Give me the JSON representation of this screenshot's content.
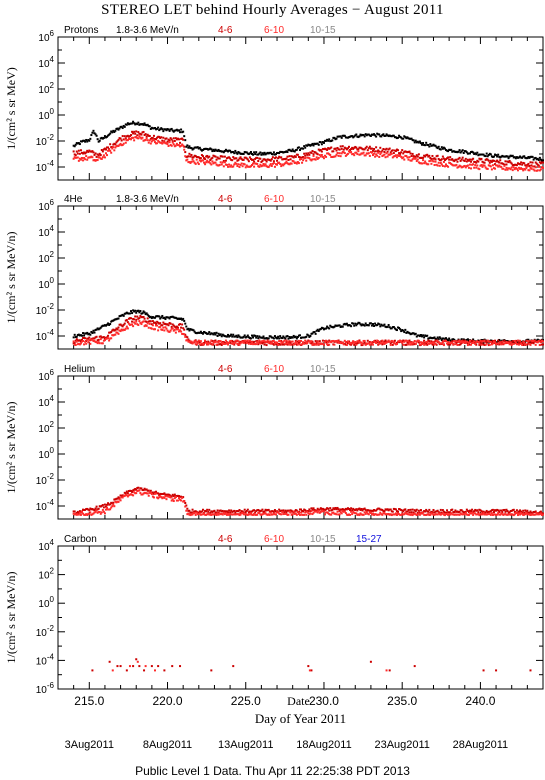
{
  "title": "STEREO LET behind Hourly Averages − August 2011",
  "footer": "Public Level 1 Data. Thu Apr 11 22:25:38 PDT 2013",
  "colors": {
    "series_1": "#000000",
    "series_2": "#cc0000",
    "series_3": "#ff2a2a",
    "series_4": "#888888",
    "series_5": "#1010dd"
  },
  "chart_data": [
    {
      "type": "scatter",
      "panel_label": "Protons",
      "ylabel": "1/(cm² s sr MeV)",
      "yscale": "log",
      "ylim_exp": [
        -5,
        6
      ],
      "ytick_exps": [
        -4,
        -2,
        0,
        2,
        4,
        6
      ],
      "xlim": [
        213.0,
        244.0
      ],
      "channel_labels": [
        "1.8-3.6 MeV/n",
        "4-6",
        "6-10",
        "10-15"
      ],
      "channel_colors": [
        "#000000",
        "#cc0000",
        "#ff2a2a",
        "#888888"
      ],
      "series": [
        {
          "name": "1.8-3.6 MeV/n",
          "color": "#000000",
          "x": [
            214.0,
            214.5,
            215.0,
            215.3,
            215.6,
            216.0,
            216.5,
            217.0,
            217.5,
            218.0,
            218.5,
            219.0,
            219.5,
            220.0,
            220.5,
            221.0,
            221.2,
            221.5,
            222.0,
            223.0,
            224.0,
            225.0,
            226.0,
            227.0,
            228.0,
            229.0,
            230.0,
            231.0,
            232.0,
            233.0,
            234.0,
            235.0,
            236.0,
            237.0,
            238.0,
            239.0,
            240.0,
            241.0,
            242.0,
            243.0,
            244.0
          ],
          "y": [
            0.004,
            0.008,
            0.012,
            0.06,
            0.01,
            0.02,
            0.05,
            0.1,
            0.22,
            0.25,
            0.2,
            0.1,
            0.08,
            0.07,
            0.06,
            0.06,
            0.004,
            0.003,
            0.0025,
            0.002,
            0.0015,
            0.0012,
            0.001,
            0.0012,
            0.0018,
            0.004,
            0.008,
            0.02,
            0.025,
            0.03,
            0.025,
            0.02,
            0.008,
            0.004,
            0.002,
            0.0015,
            0.001,
            0.0007,
            0.0006,
            0.0005,
            0.0004
          ]
        },
        {
          "name": "4-6",
          "color": "#cc0000",
          "x": [
            214.0,
            215.0,
            215.5,
            216.0,
            217.0,
            217.5,
            218.0,
            218.5,
            219.0,
            220.0,
            220.5,
            221.0,
            221.2,
            222.0,
            224.0,
            226.0,
            228.0,
            229.0,
            230.0,
            231.0,
            232.0,
            233.0,
            234.0,
            235.0,
            236.0,
            238.0,
            240.0,
            242.0,
            244.0
          ],
          "y": [
            0.0012,
            0.0015,
            0.0008,
            0.002,
            0.015,
            0.03,
            0.04,
            0.035,
            0.02,
            0.012,
            0.012,
            0.01,
            0.0008,
            0.0006,
            0.0004,
            0.00035,
            0.0005,
            0.001,
            0.0018,
            0.003,
            0.003,
            0.0025,
            0.002,
            0.0015,
            0.0008,
            0.0004,
            0.0003,
            0.0002,
            0.00015
          ]
        },
        {
          "name": "6-10",
          "color": "#ff2a2a",
          "x": [
            214.0,
            215.0,
            215.5,
            216.0,
            217.0,
            217.5,
            218.0,
            218.5,
            219.0,
            220.0,
            220.5,
            221.0,
            221.2,
            222.0,
            224.0,
            226.0,
            228.0,
            229.0,
            230.0,
            231.0,
            232.0,
            233.0,
            234.0,
            235.0,
            236.0,
            238.0,
            240.0,
            242.0,
            244.0
          ],
          "y": [
            0.0004,
            0.0005,
            0.0003,
            0.0008,
            0.006,
            0.012,
            0.018,
            0.015,
            0.009,
            0.006,
            0.005,
            0.004,
            0.0003,
            0.00025,
            0.00015,
            0.00012,
            0.0002,
            0.0004,
            0.0007,
            0.001,
            0.0012,
            0.001,
            0.0008,
            0.0006,
            0.0003,
            0.00015,
            0.0001,
            8e-05,
            7e-05
          ]
        }
      ]
    },
    {
      "type": "scatter",
      "panel_label": "4He",
      "ylabel": "1/(cm² s sr MeV/n)",
      "yscale": "log",
      "ylim_exp": [
        -5,
        6
      ],
      "ytick_exps": [
        -4,
        -2,
        0,
        2,
        4,
        6
      ],
      "xlim": [
        213.0,
        244.0
      ],
      "channel_labels": [
        "1.8-3.6 MeV/n",
        "4-6",
        "6-10",
        "10-15"
      ],
      "channel_colors": [
        "#000000",
        "#cc0000",
        "#ff2a2a",
        "#888888"
      ],
      "series": [
        {
          "name": "1.8-3.6 MeV/n",
          "color": "#000000",
          "x": [
            214.0,
            215.0,
            216.0,
            217.0,
            217.5,
            218.0,
            218.5,
            219.0,
            220.0,
            221.0,
            221.3,
            222.0,
            224.0,
            226.0,
            228.0,
            229.0,
            230.0,
            231.0,
            232.0,
            233.0,
            234.0,
            235.0,
            236.0,
            238.0,
            240.0,
            242.0,
            244.0
          ],
          "y": [
            0.0001,
            0.00015,
            0.0006,
            0.003,
            0.006,
            0.008,
            0.006,
            0.003,
            0.0025,
            0.002,
            0.0003,
            0.0002,
            0.0001,
            8e-05,
            8e-05,
            0.0001,
            0.0004,
            0.0006,
            0.0008,
            0.0008,
            0.0006,
            0.0003,
            0.0001,
            5e-05,
            4e-05,
            4e-05,
            4e-05
          ]
        },
        {
          "name": "4-6",
          "color": "#cc0000",
          "x": [
            214.0,
            216.0,
            217.0,
            217.5,
            218.0,
            218.5,
            219.0,
            220.0,
            221.0,
            221.3,
            222.0,
            226.0,
            230.0,
            234.0,
            238.0,
            244.0
          ],
          "y": [
            4e-05,
            8e-05,
            0.0006,
            0.0015,
            0.0025,
            0.0022,
            0.0012,
            0.0008,
            0.0005,
            4e-05,
            3e-05,
            3e-05,
            3e-05,
            3e-05,
            3e-05,
            3e-05
          ]
        },
        {
          "name": "6-10",
          "color": "#ff2a2a",
          "x": [
            214.0,
            216.0,
            217.0,
            217.5,
            218.0,
            218.5,
            219.0,
            220.0,
            221.0,
            221.3,
            222.0,
            226.0,
            230.0,
            234.0,
            238.0,
            244.0
          ],
          "y": [
            3e-05,
            4e-05,
            0.0002,
            0.0006,
            0.001,
            0.0009,
            0.0005,
            0.0003,
            0.0002,
            3e-05,
            3e-05,
            3e-05,
            3e-05,
            3e-05,
            3e-05,
            3e-05
          ]
        }
      ]
    },
    {
      "type": "scatter",
      "panel_label": "Helium",
      "ylabel": "1/(cm² s sr MeV/n)",
      "yscale": "log",
      "ylim_exp": [
        -5,
        6
      ],
      "ytick_exps": [
        -4,
        -2,
        0,
        2,
        4,
        6
      ],
      "xlim": [
        213.0,
        244.0
      ],
      "channel_labels": [
        "4-6",
        "6-10",
        "10-15"
      ],
      "channel_colors": [
        "#cc0000",
        "#ff2a2a",
        "#888888"
      ],
      "series": [
        {
          "name": "4-6",
          "color": "#cc0000",
          "x": [
            214.0,
            215.0,
            216.0,
            216.5,
            217.0,
            217.5,
            218.0,
            218.5,
            219.0,
            219.5,
            220.0,
            220.5,
            221.0,
            221.3,
            222.0,
            225.0,
            228.0,
            230.0,
            232.0,
            234.0,
            236.0,
            238.0,
            240.0,
            242.0,
            244.0
          ],
          "y": [
            3e-05,
            5e-05,
            0.0001,
            0.0002,
            0.0005,
            0.0012,
            0.002,
            0.0018,
            0.0012,
            0.0008,
            0.0007,
            0.0006,
            0.0005,
            4e-05,
            4e-05,
            4e-05,
            4e-05,
            6e-05,
            5e-05,
            5e-05,
            4e-05,
            4e-05,
            4e-05,
            4e-05,
            3e-05
          ]
        },
        {
          "name": "6-10",
          "color": "#ff2a2a",
          "x": [
            214.0,
            216.0,
            216.5,
            217.0,
            217.5,
            218.0,
            218.5,
            219.0,
            220.0,
            221.0,
            221.3,
            222.0,
            226.0,
            230.0,
            234.0,
            238.0,
            242.0,
            244.0
          ],
          "y": [
            2e-05,
            4e-05,
            0.0001,
            0.0003,
            0.0007,
            0.0012,
            0.001,
            0.0007,
            0.0004,
            0.0003,
            2e-05,
            2e-05,
            2e-05,
            3e-05,
            2e-05,
            2e-05,
            2e-05,
            2e-05
          ]
        }
      ]
    },
    {
      "type": "scatter",
      "panel_label": "Carbon",
      "ylabel": "1/(cm² s sr MeV/n)",
      "yscale": "log",
      "ylim_exp": [
        -6,
        4
      ],
      "ytick_exps": [
        -6,
        -4,
        -2,
        0,
        2,
        4
      ],
      "xlim": [
        213.0,
        244.0
      ],
      "xticks": [
        215.0,
        220.0,
        225.0,
        230.0,
        235.0,
        240.0
      ],
      "xlabel": "Day of Year 2011",
      "channel_labels": [
        "4-6",
        "6-10",
        "10-15",
        "15-27"
      ],
      "channel_colors": [
        "#cc0000",
        "#ff2a2a",
        "#888888",
        "#1010dd"
      ],
      "series": [
        {
          "name": "4-6",
          "color": "#cc0000",
          "x": [
            215.2,
            216.3,
            216.8,
            217.0,
            217.4,
            217.8,
            218.0,
            218.2,
            218.5,
            219.0,
            219.4,
            219.8,
            220.3,
            220.8,
            222.8,
            224.2,
            229.0,
            229.2,
            233.0,
            234.2,
            235.8,
            240.2,
            241.0,
            243.2
          ],
          "y": [
            2e-05,
            8e-05,
            4e-05,
            4e-05,
            2e-05,
            4e-05,
            0.00012,
            4e-05,
            2e-05,
            4e-05,
            4e-05,
            2e-05,
            4e-05,
            4e-05,
            2e-05,
            4e-05,
            4e-05,
            2e-05,
            8e-05,
            2e-05,
            4e-05,
            2e-05,
            2e-05,
            2e-05
          ]
        },
        {
          "name": "6-10",
          "color": "#ff2a2a",
          "x": [
            216.5,
            217.6,
            218.1,
            218.6,
            219.2,
            229.1,
            234.0
          ],
          "y": [
            2e-05,
            4e-05,
            8e-05,
            4e-05,
            2e-05,
            2e-05,
            2e-05
          ]
        }
      ]
    }
  ],
  "date_labels": [
    {
      "label": "3Aug2011",
      "doy": 215.0
    },
    {
      "label": "8Aug2011",
      "doy": 220.0
    },
    {
      "label": "13Aug2011",
      "doy": 225.0
    },
    {
      "label": "18Aug2011",
      "doy": 230.0
    },
    {
      "label": "23Aug2011",
      "doy": 235.0
    },
    {
      "label": "28Aug2011",
      "doy": 240.0
    }
  ],
  "date_axis_label": "Date"
}
